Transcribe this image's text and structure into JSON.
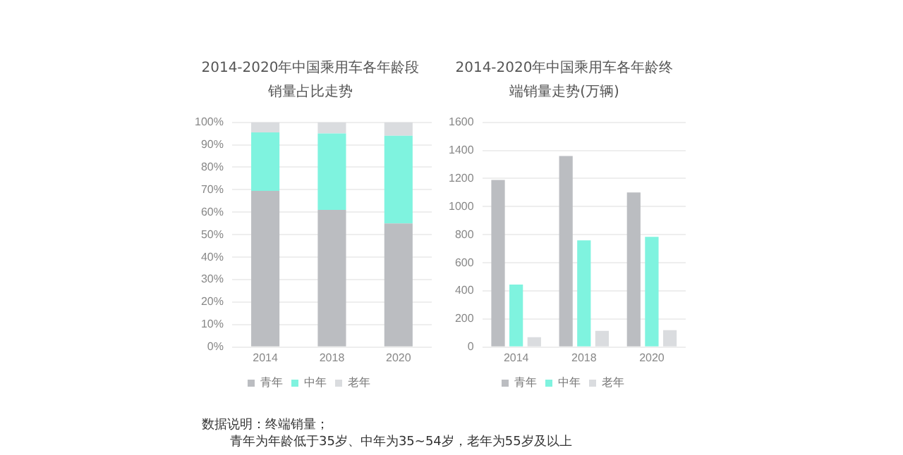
{
  "chart_data": [
    {
      "type": "bar",
      "title": "2014-2020年中国乘用车各年龄段销量占比走势",
      "categories": [
        "2014",
        "2018",
        "2020"
      ],
      "stacked": true,
      "series": [
        {
          "name": "青年",
          "color": "#bbbdc1",
          "values": [
            69.5,
            61,
            55
          ]
        },
        {
          "name": "中年",
          "color": "#7ff3df",
          "values": [
            26,
            34,
            39
          ]
        },
        {
          "name": "老年",
          "color": "#dadcdf",
          "values": [
            4.5,
            5,
            6
          ]
        }
      ],
      "ylim": [
        0,
        100
      ],
      "yticks": [
        {
          "value": 0,
          "label": "0%"
        },
        {
          "value": 10,
          "label": "10%"
        },
        {
          "value": 20,
          "label": "20%"
        },
        {
          "value": 30,
          "label": "30%"
        },
        {
          "value": 40,
          "label": "40%"
        },
        {
          "value": 50,
          "label": "50%"
        },
        {
          "value": 60,
          "label": "60%"
        },
        {
          "value": 70,
          "label": "70%"
        },
        {
          "value": 80,
          "label": "80%"
        },
        {
          "value": 90,
          "label": "90%"
        },
        {
          "value": 100,
          "label": "100%"
        }
      ],
      "grid": "y",
      "legend": "bottom",
      "annotations": [
        "数据说明：终端销量；",
        "青年为年龄低于35岁、中年为35~54岁，老年为55岁及以上"
      ]
    },
    {
      "type": "bar",
      "title": "2014-2020年中国乘用车各年龄终端销量走势(万辆)",
      "categories": [
        "2014",
        "2018",
        "2020"
      ],
      "series": [
        {
          "name": "青年",
          "color": "#bbbdc1",
          "values": [
            1190,
            1360,
            1100
          ]
        },
        {
          "name": "中年",
          "color": "#7ff3df",
          "values": [
            445,
            760,
            785
          ]
        },
        {
          "name": "老年",
          "color": "#dadcdf",
          "values": [
            70,
            115,
            120
          ]
        }
      ],
      "ylim": [
        0,
        1600
      ],
      "yticks": [
        0,
        200,
        400,
        600,
        800,
        1000,
        1200,
        1400,
        1600
      ],
      "grid": "y",
      "legend": "bottom"
    }
  ]
}
